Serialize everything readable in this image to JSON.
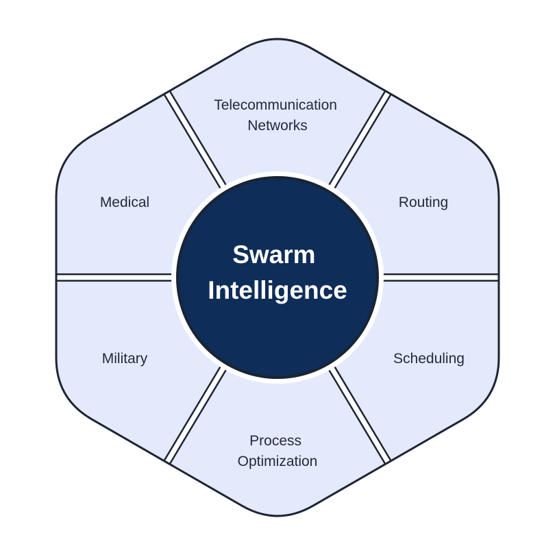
{
  "center": {
    "title": [
      "Swarm",
      "Intelligence"
    ]
  },
  "segments": [
    {
      "id": "telecommunication-networks",
      "lines": [
        "Telecommunication",
        "Networks"
      ]
    },
    {
      "id": "routing",
      "lines": [
        "Routing"
      ]
    },
    {
      "id": "scheduling",
      "lines": [
        "Scheduling"
      ]
    },
    {
      "id": "process-optimization",
      "lines": [
        "Process",
        "Optimization"
      ]
    },
    {
      "id": "military",
      "lines": [
        "Military"
      ]
    },
    {
      "id": "medical",
      "lines": [
        "Medical"
      ]
    }
  ],
  "colors": {
    "segment_fill": "#e4e9fb",
    "segment_stroke": "#1d2533",
    "divider": "#ffffff",
    "center_fill": "#0e2d58",
    "center_ring": "#1a2433",
    "center_text": "#ffffff",
    "label_text": "#1f2a3a"
  }
}
